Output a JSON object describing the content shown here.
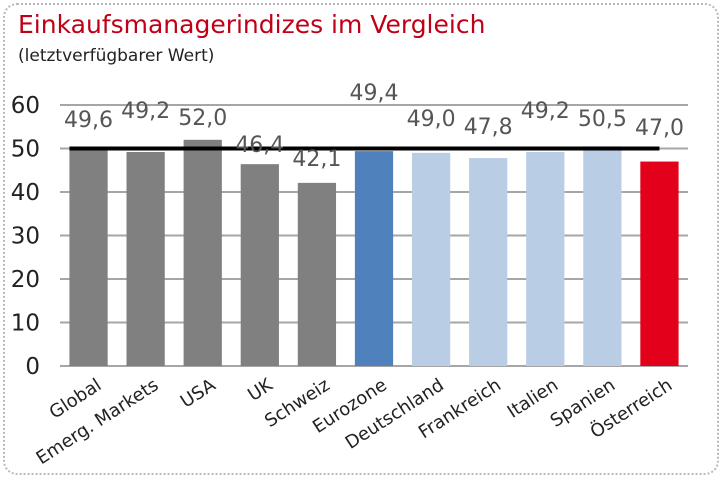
{
  "title": "Einkaufsmanagerindizes im Vergleich",
  "subtitle": "(letztverfügbarer Wert)",
  "chart_data": {
    "type": "bar",
    "categories": [
      "Global",
      "Emerg. Markets",
      "USA",
      "UK",
      "Schweiz",
      "Eurozone",
      "Deutschland",
      "Frankreich",
      "Italien",
      "Spanien",
      "Österreich"
    ],
    "values": [
      49.6,
      49.2,
      52.0,
      46.4,
      42.1,
      49.4,
      49.0,
      47.8,
      49.2,
      50.5,
      47.0
    ],
    "value_labels": [
      "49,6",
      "49,2",
      "52,0",
      "46,4",
      "42,1",
      "49,4",
      "49,0",
      "47,8",
      "49,2",
      "50,5",
      "47,0"
    ],
    "bar_colors": [
      "#808080",
      "#808080",
      "#808080",
      "#808080",
      "#808080",
      "#4f81bd",
      "#b9cde5",
      "#b9cde5",
      "#b9cde5",
      "#b9cde5",
      "#e3001b"
    ],
    "reference_line": 50,
    "reference_line_color": "#000000",
    "ylim": [
      0,
      60
    ],
    "yticks": [
      0,
      10,
      20,
      30,
      40,
      50,
      60
    ],
    "grid": true,
    "gridline_color": "#a6a6a6",
    "xlabel": "",
    "ylabel": "",
    "legend": "none"
  }
}
